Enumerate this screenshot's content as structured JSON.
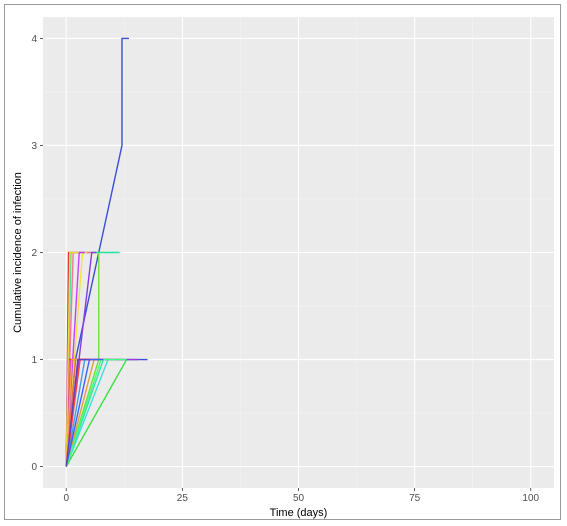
{
  "chart_data": {
    "type": "line",
    "title": "",
    "xlabel": "Time (days)",
    "ylabel": "Cumulative incidence of infection",
    "xlim": [
      -5,
      105
    ],
    "ylim": [
      -0.2,
      4.2
    ],
    "x_ticks": [
      0,
      25,
      50,
      75,
      100
    ],
    "y_ticks": [
      0,
      1,
      2,
      3,
      4
    ],
    "x_tick_labels": [
      "0",
      "25",
      "50",
      "75",
      "100"
    ],
    "y_tick_labels": [
      "0",
      "1",
      "2",
      "3",
      "4"
    ],
    "grid": true,
    "legend": "none",
    "series": [
      {
        "color": "#3b4fd8",
        "x": [
          0,
          2,
          7,
          12,
          12,
          13.5
        ],
        "y": [
          0,
          1,
          2,
          3,
          4,
          4
        ]
      },
      {
        "color": "#3b4fd8",
        "x": [
          0,
          1,
          17.5
        ],
        "y": [
          0,
          1,
          1
        ]
      },
      {
        "color": "#1ee6a0",
        "x": [
          0,
          1,
          11.5
        ],
        "y": [
          0,
          2,
          2
        ]
      },
      {
        "color": "#e03a3a",
        "x": [
          0,
          0.5,
          4.5
        ],
        "y": [
          0,
          2,
          2
        ]
      },
      {
        "color": "#ff6fa0",
        "x": [
          0,
          1.5,
          5.5
        ],
        "y": [
          0,
          2,
          2
        ]
      },
      {
        "color": "#f2e33a",
        "x": [
          0,
          3.5,
          4.5
        ],
        "y": [
          0,
          2,
          2
        ]
      },
      {
        "color": "#8a3ae0",
        "x": [
          0,
          5.5,
          6.5
        ],
        "y": [
          0,
          2,
          2
        ]
      },
      {
        "color": "#6ee040",
        "x": [
          0,
          7,
          7
        ],
        "y": [
          0,
          1,
          2
        ]
      },
      {
        "color": "#e040e0",
        "x": [
          0,
          1,
          8.5
        ],
        "y": [
          0,
          1,
          1
        ]
      },
      {
        "color": "#3ae0e0",
        "x": [
          0,
          9,
          9.5
        ],
        "y": [
          0,
          1,
          1
        ]
      },
      {
        "color": "#e0a03a",
        "x": [
          0,
          6,
          10.5
        ],
        "y": [
          0,
          1,
          1
        ]
      },
      {
        "color": "#3ae040",
        "x": [
          0,
          13,
          14.5
        ],
        "y": [
          0,
          1,
          1
        ]
      },
      {
        "color": "#a03ae0",
        "x": [
          0,
          0.3,
          15.5
        ],
        "y": [
          0,
          1,
          1
        ]
      },
      {
        "color": "#e0403a",
        "x": [
          0,
          0.5,
          12
        ],
        "y": [
          0,
          1,
          1
        ]
      },
      {
        "color": "#40a0e0",
        "x": [
          0,
          4,
          9
        ],
        "y": [
          0,
          1,
          1
        ]
      },
      {
        "color": "#e06f3a",
        "x": [
          0,
          2,
          6
        ],
        "y": [
          0,
          1,
          1
        ]
      },
      {
        "color": "#40e0a0",
        "x": [
          0,
          8,
          11
        ],
        "y": [
          0,
          1,
          1
        ]
      },
      {
        "color": "#e0e040",
        "x": [
          0,
          0.8,
          3.5
        ],
        "y": [
          0,
          2,
          2
        ]
      },
      {
        "color": "#c040ff",
        "x": [
          0,
          2.8,
          4
        ],
        "y": [
          0,
          2,
          2
        ]
      },
      {
        "color": "#40ff80",
        "x": [
          0,
          7.5,
          13
        ],
        "y": [
          0,
          1,
          1
        ]
      },
      {
        "color": "#ff4040",
        "x": [
          0,
          3,
          7
        ],
        "y": [
          0,
          1,
          1
        ]
      },
      {
        "color": "#4060ff",
        "x": [
          0,
          5,
          8
        ],
        "y": [
          0,
          1,
          1
        ]
      },
      {
        "color": "#ff9f40",
        "x": [
          0,
          1.2,
          2.5
        ],
        "y": [
          0,
          1,
          1
        ]
      },
      {
        "color": "#6040c0",
        "x": [
          0,
          2.5,
          5
        ],
        "y": [
          0,
          1,
          1
        ]
      }
    ]
  }
}
